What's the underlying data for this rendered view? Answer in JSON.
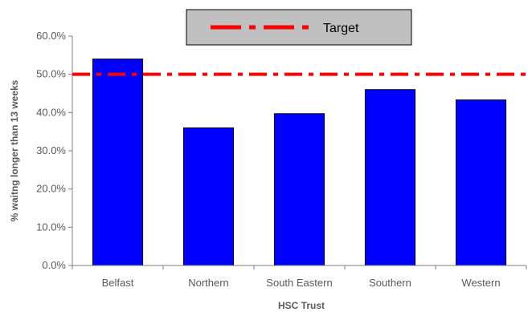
{
  "chart_data": {
    "type": "bar",
    "title": "",
    "xlabel": "HSC Trust",
    "ylabel": "% waitng longer than 13 weeks",
    "categories": [
      "Belfast",
      "Northern",
      "South Eastern",
      "Southern",
      "Western"
    ],
    "series": [
      {
        "values": [
          54.0,
          36.0,
          39.7,
          46.0,
          43.3
        ]
      }
    ],
    "ylim": [
      0,
      60
    ],
    "yticks": [
      0,
      10,
      20,
      30,
      40,
      50,
      60
    ],
    "ytick_labels": [
      "0.0%",
      "10.0%",
      "20.0%",
      "30.0%",
      "40.0%",
      "50.0%",
      "60.0%"
    ],
    "target": {
      "name": "Target",
      "value": 50
    },
    "legend": {
      "position": "top-center",
      "entries": [
        "Target"
      ]
    },
    "grid": false,
    "colors": {
      "bar": "#0000ff",
      "bar_edge": "#000000",
      "target_line": "#ff0000",
      "legend_bg": "#c0c0c0"
    }
  }
}
